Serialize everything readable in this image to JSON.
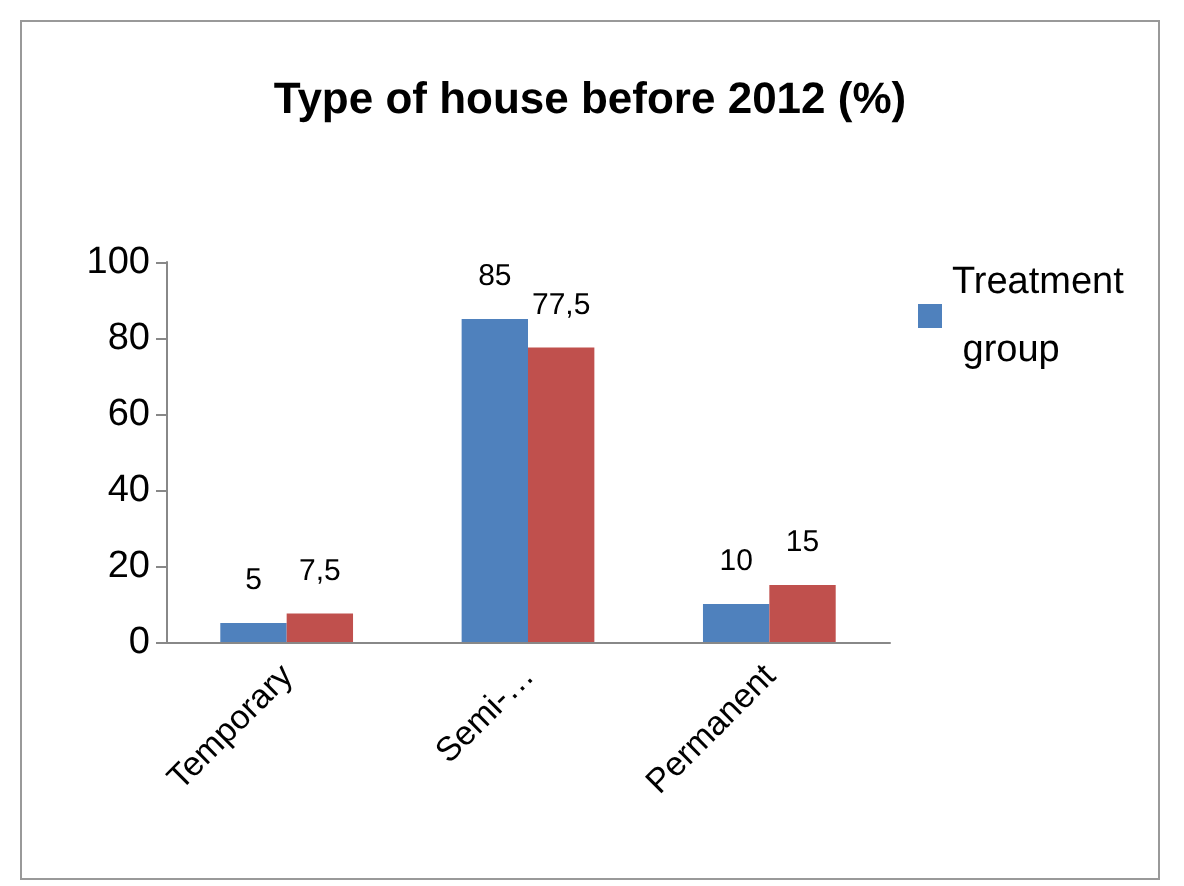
{
  "chart_data": {
    "type": "bar",
    "title": "Type of house before 2012 (%)",
    "categories": [
      "Temporary",
      "Semi-…",
      "Permanent"
    ],
    "series": [
      {
        "name": "Treatment group",
        "color": "#4f81bd",
        "values": [
          5,
          85,
          10
        ],
        "value_labels": [
          "5",
          "85",
          "10"
        ]
      },
      {
        "color": "#c0504d",
        "values": [
          7.5,
          77.5,
          15
        ],
        "value_labels": [
          "7,5",
          "77,5",
          "15"
        ]
      }
    ],
    "ylim": [
      0,
      100
    ],
    "yticks": [
      0,
      20,
      40,
      60,
      80,
      100
    ],
    "grid": false,
    "legend": "right"
  }
}
